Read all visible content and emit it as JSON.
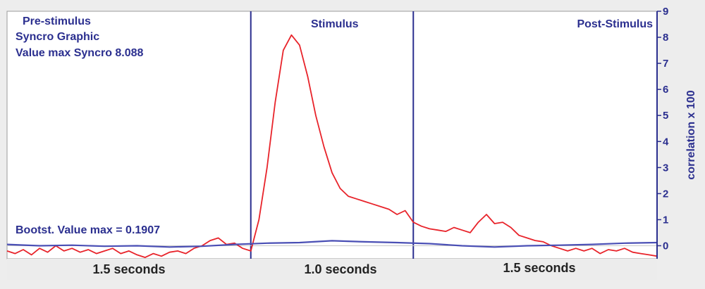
{
  "annotations": {
    "pre_stimulus": "Pre-stimulus",
    "syncro_graphic": "Syncro Graphic",
    "value_max": "Value max Syncro 8.088",
    "stimulus": "Stimulus",
    "post_stimulus": "Post-Stimulus",
    "bootstrap_max": "Bootst. Value max = 0.1907"
  },
  "segments": {
    "pre": "1.5 seconds",
    "stim": "1.0 seconds",
    "post": "1.5 seconds"
  },
  "colors": {
    "syncro": "#e8232a",
    "bootstrap": "#4a4fb5",
    "axis": "#2b2f8f",
    "divider": "#2b2f8f",
    "plot_bg": "#ffffff",
    "frame_bg": "#ededed"
  },
  "chart_data": {
    "type": "line",
    "title": "",
    "xlabel": "",
    "ylabel": "correlation x 100",
    "xlim": [
      0,
      4
    ],
    "ylim": [
      -0.5,
      9
    ],
    "yticks": [
      "0",
      "1",
      "2",
      "3",
      "4",
      "5",
      "6",
      "7",
      "8",
      "9"
    ],
    "grid": false,
    "stimulus_onset": 1.5,
    "stimulus_offset": 2.5,
    "series": [
      {
        "key": "syncro",
        "x": [
          0,
          0.05,
          0.1,
          0.15,
          0.2,
          0.25,
          0.3,
          0.35,
          0.4,
          0.45,
          0.5,
          0.55,
          0.6,
          0.65,
          0.7,
          0.75,
          0.8,
          0.85,
          0.9,
          0.95,
          1.0,
          1.05,
          1.1,
          1.15,
          1.2,
          1.25,
          1.3,
          1.35,
          1.4,
          1.45,
          1.5,
          1.55,
          1.6,
          1.65,
          1.7,
          1.75,
          1.8,
          1.85,
          1.9,
          1.95,
          2.0,
          2.05,
          2.1,
          2.15,
          2.2,
          2.25,
          2.3,
          2.35,
          2.4,
          2.45,
          2.5,
          2.55,
          2.6,
          2.65,
          2.7,
          2.75,
          2.8,
          2.85,
          2.9,
          2.95,
          3.0,
          3.05,
          3.1,
          3.15,
          3.2,
          3.25,
          3.3,
          3.35,
          3.4,
          3.45,
          3.5,
          3.55,
          3.6,
          3.65,
          3.7,
          3.75,
          3.8,
          3.85,
          3.9,
          3.95,
          4.0
        ],
        "values": [
          -0.2,
          -0.3,
          -0.15,
          -0.35,
          -0.1,
          -0.25,
          0.0,
          -0.2,
          -0.1,
          -0.25,
          -0.15,
          -0.3,
          -0.2,
          -0.1,
          -0.3,
          -0.2,
          -0.35,
          -0.45,
          -0.3,
          -0.4,
          -0.25,
          -0.2,
          -0.3,
          -0.1,
          0.0,
          0.2,
          0.3,
          0.05,
          0.1,
          -0.1,
          -0.2,
          1.0,
          3.0,
          5.5,
          7.5,
          8.088,
          7.7,
          6.5,
          5.0,
          3.8,
          2.8,
          2.2,
          1.9,
          1.8,
          1.7,
          1.6,
          1.5,
          1.4,
          1.2,
          1.35,
          0.9,
          0.75,
          0.65,
          0.6,
          0.55,
          0.7,
          0.6,
          0.5,
          0.9,
          1.2,
          0.85,
          0.9,
          0.7,
          0.4,
          0.3,
          0.2,
          0.15,
          0.0,
          -0.1,
          -0.2,
          -0.1,
          -0.2,
          -0.1,
          -0.3,
          -0.15,
          -0.2,
          -0.1,
          -0.25,
          -0.3,
          -0.35,
          -0.4
        ]
      },
      {
        "key": "bootstrap",
        "x": [
          0,
          0.2,
          0.4,
          0.6,
          0.8,
          1.0,
          1.2,
          1.4,
          1.6,
          1.8,
          2.0,
          2.2,
          2.4,
          2.6,
          2.8,
          3.0,
          3.2,
          3.4,
          3.6,
          3.8,
          4.0
        ],
        "values": [
          0.05,
          0.0,
          0.02,
          -0.02,
          0.0,
          -0.05,
          -0.02,
          0.05,
          0.1,
          0.12,
          0.19,
          0.15,
          0.12,
          0.08,
          0.0,
          -0.05,
          0.0,
          0.02,
          0.05,
          0.1,
          0.12
        ]
      }
    ]
  }
}
